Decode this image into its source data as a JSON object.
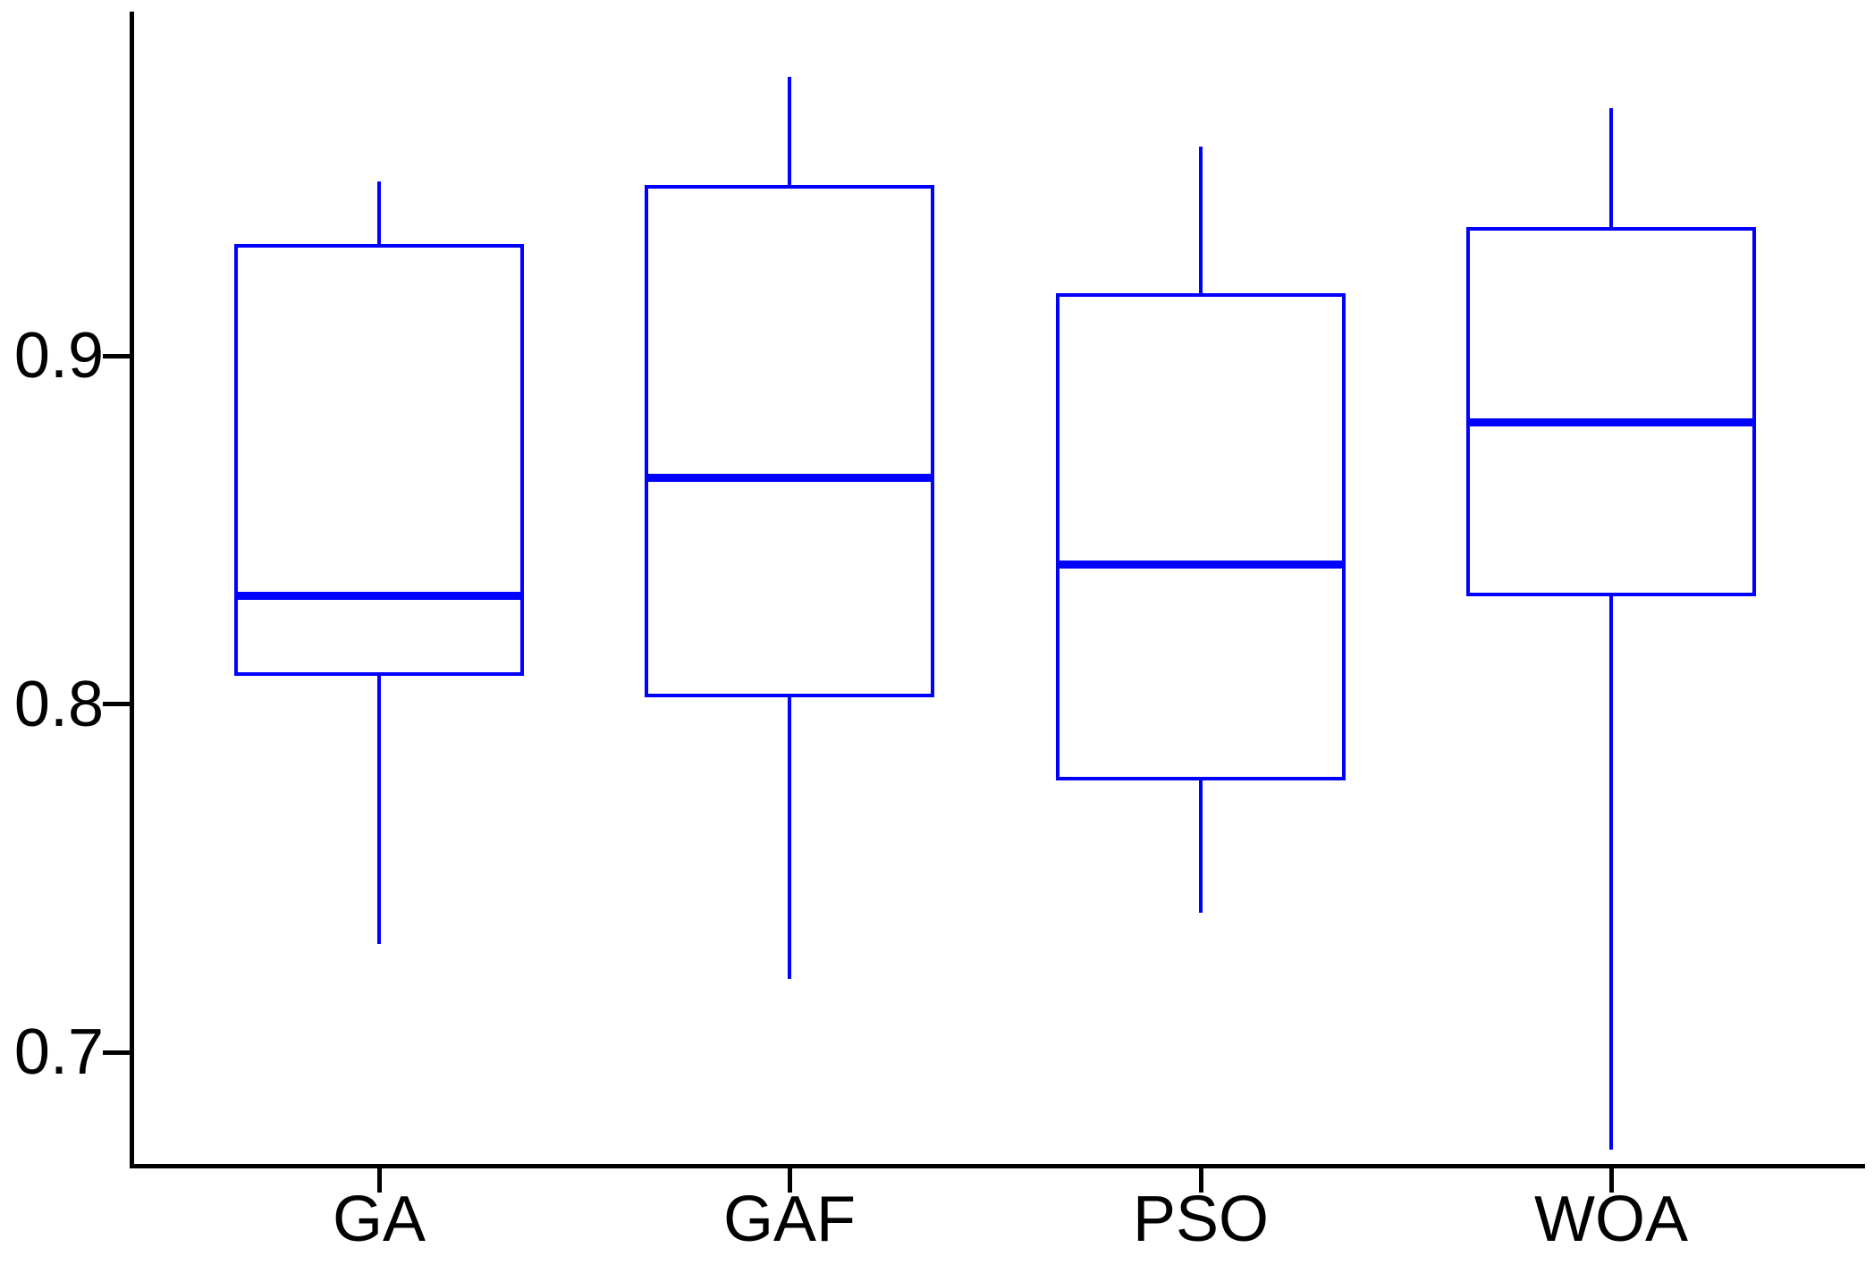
{
  "chart_data": {
    "type": "boxplot",
    "title": "",
    "xlabel": "",
    "ylabel": "",
    "categories": [
      "GA",
      "GAF",
      "PSO",
      "WOA"
    ],
    "series": [
      {
        "name": "GA",
        "min": 0.731,
        "q1": 0.808,
        "median": 0.831,
        "q3": 0.932,
        "max": 0.95
      },
      {
        "name": "GAF",
        "min": 0.721,
        "q1": 0.802,
        "median": 0.865,
        "q3": 0.949,
        "max": 0.98
      },
      {
        "name": "PSO",
        "min": 0.74,
        "q1": 0.778,
        "median": 0.84,
        "q3": 0.918,
        "max": 0.96
      },
      {
        "name": "WOA",
        "min": 0.672,
        "q1": 0.831,
        "median": 0.881,
        "q3": 0.937,
        "max": 0.971
      }
    ],
    "y_ticks": [
      0.7,
      0.8,
      0.9
    ],
    "y_tick_labels": [
      "0.7",
      "0.8",
      "0.9"
    ],
    "ylim": [
      0.655,
      0.985
    ],
    "grid": false,
    "legend": "none",
    "box_color": "#0000ff",
    "axis_color": "#000000",
    "text_color": "#000000",
    "background_color": "#ffffff"
  }
}
